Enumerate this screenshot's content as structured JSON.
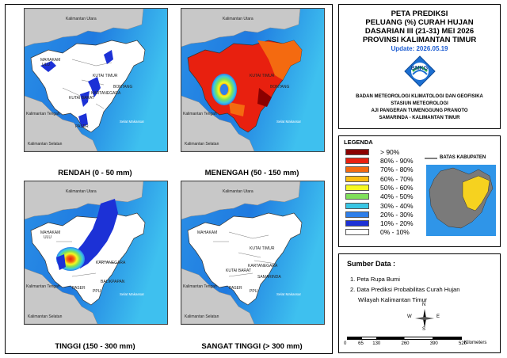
{
  "title": {
    "line1": "PETA PREDIKSI",
    "line2": "PELUANG (%) CURAH HUJAN",
    "line3": "DASARIAN III (21-31) MEI 2026",
    "line4": "PROVINSI KALIMANTAN TIMUR",
    "update": "Update: 2026.05.19"
  },
  "logo_text": "BMKG",
  "organization": {
    "line1": "BADAN METEOROLOGI KLIMATOLOGI DAN GEOFISIKA",
    "line2": "STASIUN METEOROLOGI",
    "line3": "AJI PANGERAN TUMENGGUNG PRANOTO",
    "line4": "SAMARINDA - KALIMANTAN TIMUR"
  },
  "panels": [
    {
      "caption": "RENDAH (0 - 50 mm)"
    },
    {
      "caption": "MENENGAH (50 - 150 mm)"
    },
    {
      "caption": "TINGGI (150 - 300 mm)"
    },
    {
      "caption": "SANGAT TINGGI (> 300 mm)"
    }
  ],
  "map_labels": {
    "kaltara": "Kalimantan Utara",
    "kalteng": "Kalimantan Tengah",
    "kalsel": "Kalimantan Selatan",
    "makassar": "Selat Makassar",
    "mahakam": "MAHAKAM",
    "ulu": "ULU",
    "kutai_timur": "KUTAI TIMUR",
    "kutai_barat": "KUTAI BARAT",
    "kartanegara": "KARTANEGARA",
    "bontang": "BONTANG",
    "samarinda": "SAMARINDA",
    "paser": "PASER",
    "ppu": "PPU",
    "balikpapan": "BALIKPAPAN"
  },
  "legend": {
    "title": "LEGENDA",
    "items": [
      {
        "label": "> 90%",
        "color": "#8b0000"
      },
      {
        "label": "80% - 90%",
        "color": "#e8200f"
      },
      {
        "label": "70% - 80%",
        "color": "#f46a10"
      },
      {
        "label": "60% - 70%",
        "color": "#fbbd12"
      },
      {
        "label": "50% - 60%",
        "color": "#f6f91f"
      },
      {
        "label": "40% - 50%",
        "color": "#7fe05a"
      },
      {
        "label": "30% - 40%",
        "color": "#39c6e4"
      },
      {
        "label": "20% - 30%",
        "color": "#2f7fea"
      },
      {
        "label": "10% - 20%",
        "color": "#1c31d6"
      },
      {
        "label": "0% - 10%",
        "color": "#ffffff"
      }
    ],
    "boundary_label": "BATAS KABUPATEN"
  },
  "source": {
    "title": "Sumber Data :",
    "item1": "1. Peta Rupa Bumi",
    "item2a": "2. Data Prediksi Probabilitas Curah Hujan",
    "item2b": "Wilayah Kalimantan Timur"
  },
  "compass": {
    "n": "N",
    "s": "S",
    "e": "E",
    "w": "W"
  },
  "scale": {
    "ticks": [
      "0",
      "65",
      "130",
      "260",
      "390",
      "520"
    ],
    "unit": "Kilometers"
  },
  "colors": {
    "sea_deep": "#1565d8",
    "sea_light": "#3fb8f0",
    "land_other": "#c8c8c8",
    "accent_update": "#1a5bd1"
  }
}
